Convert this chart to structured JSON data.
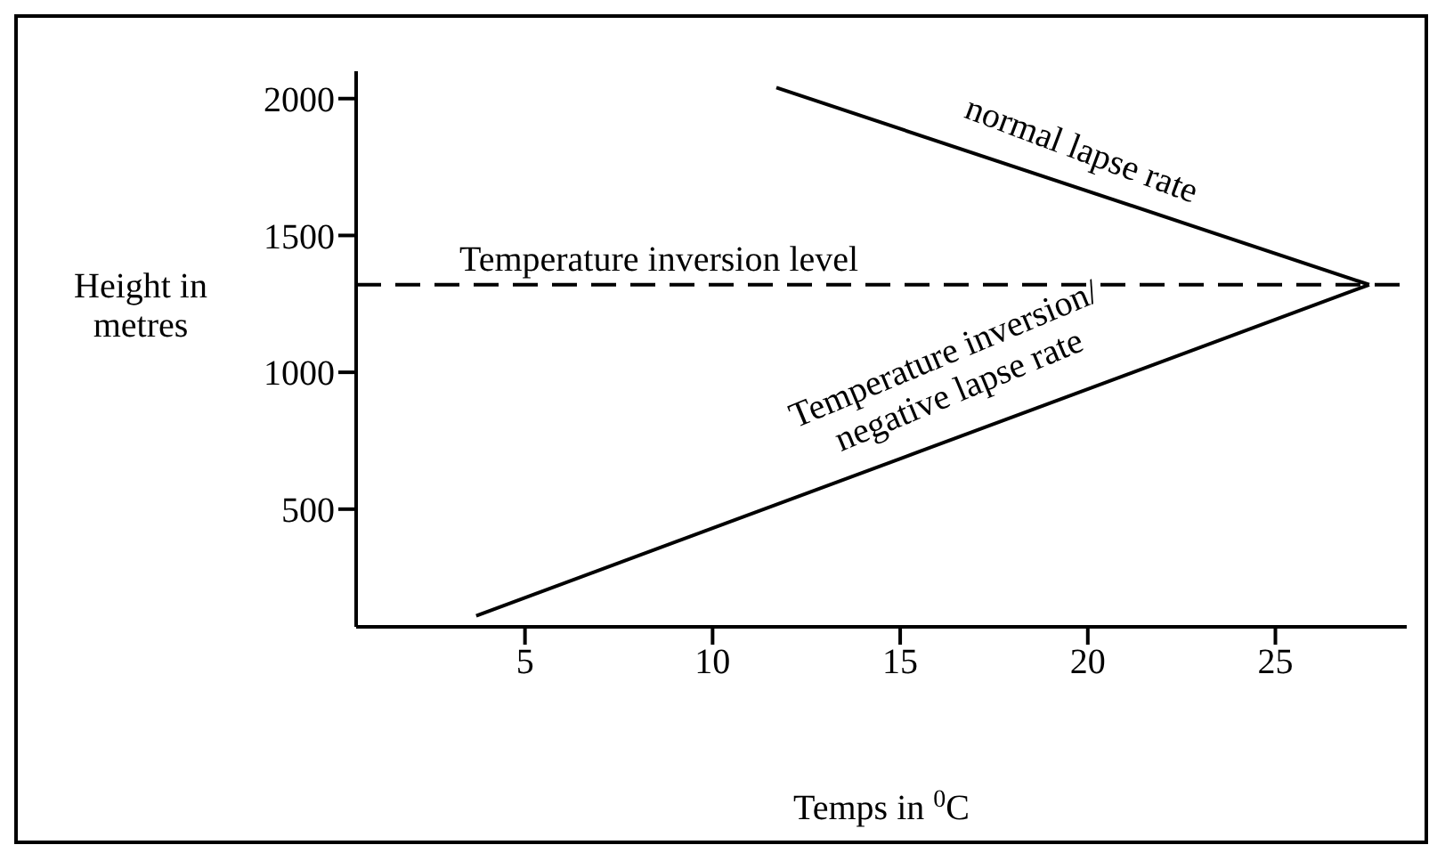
{
  "chart_data": {
    "type": "line",
    "xlabel": "Temps in $^{0}$C",
    "ylabel": "Height in metres",
    "xlim": [
      0.5,
      28.5
    ],
    "xticks": [
      5,
      10,
      15,
      20,
      25
    ],
    "ylim": [
      70,
      2100
    ],
    "yticks": [
      500,
      1000,
      1500,
      2000
    ],
    "marker": "none",
    "line_style": "solid",
    "series": [
      {
        "name": "normal lapse rate",
        "color": "#000000",
        "x": [
          27.5,
          11.7
        ],
        "values": [
          1320,
          2040
        ]
      },
      {
        "name": "Temperature inversion/ negative lapse rate",
        "color": "#000000",
        "x": [
          3.7,
          27.5
        ],
        "values": [
          110,
          1320
        ]
      }
    ],
    "ref_lines": [
      {
        "axis": "y",
        "value": 1320,
        "label": "Temperature inversion level",
        "line_style": "dashed",
        "color": "#000000"
      }
    ]
  }
}
